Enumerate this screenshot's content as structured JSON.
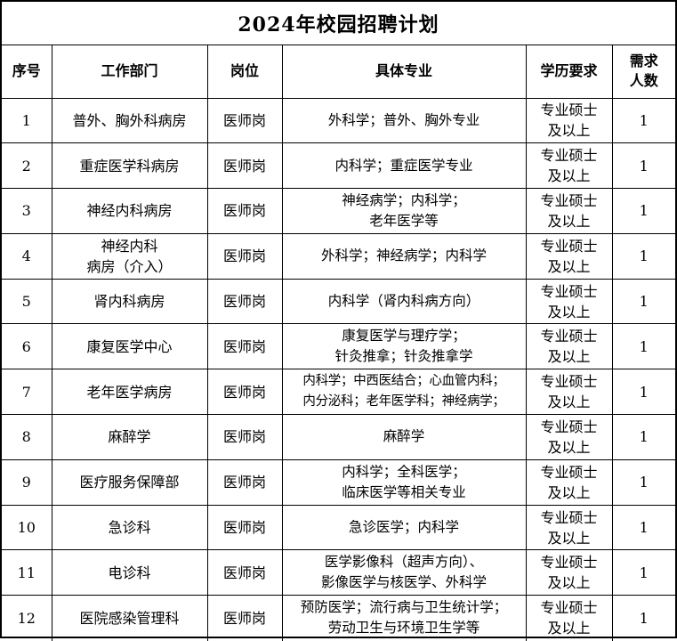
{
  "title": "2024年校园招聘计划",
  "headers": {
    "no": "序号",
    "dept": "工作部门",
    "post": "岗位",
    "major": "具体专业",
    "edu": "学历要求",
    "count_l1": "需求",
    "count_l2": "人数"
  },
  "rows": [
    {
      "no": "1",
      "dept": [
        "普外、胸外科病房"
      ],
      "post": "医师岗",
      "major": [
        "外科学；普外、胸外专业"
      ],
      "edu": [
        "专业硕士",
        "及以上"
      ],
      "count": "1"
    },
    {
      "no": "2",
      "dept": [
        "重症医学科病房"
      ],
      "post": "医师岗",
      "major": [
        "内科学；重症医学专业"
      ],
      "edu": [
        "专业硕士",
        "及以上"
      ],
      "count": "1"
    },
    {
      "no": "3",
      "dept": [
        "神经内科病房"
      ],
      "post": "医师岗",
      "major": [
        "神经病学；内科学；",
        "老年医学等"
      ],
      "edu": [
        "专业硕士",
        "及以上"
      ],
      "count": "1"
    },
    {
      "no": "4",
      "dept": [
        "神经内科",
        "病房（介入）"
      ],
      "post": "医师岗",
      "major": [
        "外科学；神经病学；内科学"
      ],
      "edu": [
        "专业硕士",
        "及以上"
      ],
      "count": "1"
    },
    {
      "no": "5",
      "dept": [
        "肾内科病房"
      ],
      "post": "医师岗",
      "major": [
        "内科学（肾内科病方向）"
      ],
      "edu": [
        "专业硕士",
        "及以上"
      ],
      "count": "1"
    },
    {
      "no": "6",
      "dept": [
        "康复医学中心"
      ],
      "post": "医师岗",
      "major": [
        "康复医学与理疗学；",
        "针灸推拿；针灸推拿学"
      ],
      "edu": [
        "专业硕士",
        "及以上"
      ],
      "count": "1"
    },
    {
      "no": "7",
      "dept": [
        "老年医学病房"
      ],
      "post": "医师岗",
      "major": [
        "内科学；中西医结合；心血管内科；",
        "内分泌科；老年医学科；神经病学；"
      ],
      "edu": [
        "专业硕士",
        "及以上"
      ],
      "count": "1",
      "tight": true
    },
    {
      "no": "8",
      "dept": [
        "麻醉学"
      ],
      "post": "医师岗",
      "major": [
        "麻醉学"
      ],
      "edu": [
        "专业硕士",
        "及以上"
      ],
      "count": "1"
    },
    {
      "no": "9",
      "dept": [
        "医疗服务保障部"
      ],
      "post": "医师岗",
      "major": [
        "内科学；全科医学；",
        "临床医学等相关专业"
      ],
      "edu": [
        "专业硕士",
        "及以上"
      ],
      "count": "1"
    },
    {
      "no": "10",
      "dept": [
        "急诊科"
      ],
      "post": "医师岗",
      "major": [
        "急诊医学；内科学"
      ],
      "edu": [
        "专业硕士",
        "及以上"
      ],
      "count": "1"
    },
    {
      "no": "11",
      "dept": [
        "电诊科"
      ],
      "post": "医师岗",
      "major": [
        "医学影像科（超声方向）、",
        "影像医学与核医学、外科学"
      ],
      "edu": [
        "专业硕士",
        "及以上"
      ],
      "count": "1"
    },
    {
      "no": "12",
      "dept": [
        "医院感染管理科"
      ],
      "post": "医师岗",
      "major": [
        "预防医学；流行病与卫生统计学；",
        "劳动卫生与环境卫生学等"
      ],
      "edu": [
        "专业硕士",
        "及以上"
      ],
      "count": "1"
    }
  ]
}
